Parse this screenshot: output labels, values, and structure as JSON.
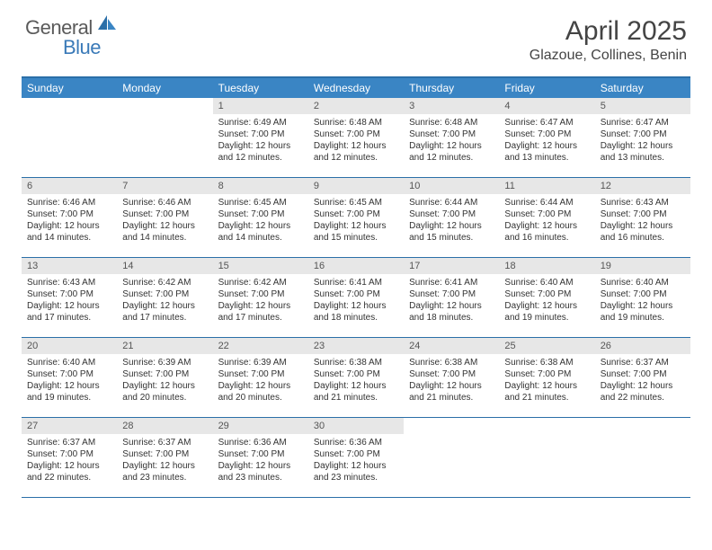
{
  "logo": {
    "general": "General",
    "blue": "Blue"
  },
  "title": "April 2025",
  "location": "Glazoue, Collines, Benin",
  "colors": {
    "header_bg": "#3a85c4",
    "header_border": "#2b6fa8",
    "daynum_bg": "#e7e7e7",
    "logo_gray": "#5a5a5a",
    "logo_blue": "#3a7ab8"
  },
  "dow": [
    "Sunday",
    "Monday",
    "Tuesday",
    "Wednesday",
    "Thursday",
    "Friday",
    "Saturday"
  ],
  "weeks": [
    [
      null,
      null,
      {
        "n": "1",
        "sr": "Sunrise: 6:49 AM",
        "ss": "Sunset: 7:00 PM",
        "dl1": "Daylight: 12 hours",
        "dl2": "and 12 minutes."
      },
      {
        "n": "2",
        "sr": "Sunrise: 6:48 AM",
        "ss": "Sunset: 7:00 PM",
        "dl1": "Daylight: 12 hours",
        "dl2": "and 12 minutes."
      },
      {
        "n": "3",
        "sr": "Sunrise: 6:48 AM",
        "ss": "Sunset: 7:00 PM",
        "dl1": "Daylight: 12 hours",
        "dl2": "and 12 minutes."
      },
      {
        "n": "4",
        "sr": "Sunrise: 6:47 AM",
        "ss": "Sunset: 7:00 PM",
        "dl1": "Daylight: 12 hours",
        "dl2": "and 13 minutes."
      },
      {
        "n": "5",
        "sr": "Sunrise: 6:47 AM",
        "ss": "Sunset: 7:00 PM",
        "dl1": "Daylight: 12 hours",
        "dl2": "and 13 minutes."
      }
    ],
    [
      {
        "n": "6",
        "sr": "Sunrise: 6:46 AM",
        "ss": "Sunset: 7:00 PM",
        "dl1": "Daylight: 12 hours",
        "dl2": "and 14 minutes."
      },
      {
        "n": "7",
        "sr": "Sunrise: 6:46 AM",
        "ss": "Sunset: 7:00 PM",
        "dl1": "Daylight: 12 hours",
        "dl2": "and 14 minutes."
      },
      {
        "n": "8",
        "sr": "Sunrise: 6:45 AM",
        "ss": "Sunset: 7:00 PM",
        "dl1": "Daylight: 12 hours",
        "dl2": "and 14 minutes."
      },
      {
        "n": "9",
        "sr": "Sunrise: 6:45 AM",
        "ss": "Sunset: 7:00 PM",
        "dl1": "Daylight: 12 hours",
        "dl2": "and 15 minutes."
      },
      {
        "n": "10",
        "sr": "Sunrise: 6:44 AM",
        "ss": "Sunset: 7:00 PM",
        "dl1": "Daylight: 12 hours",
        "dl2": "and 15 minutes."
      },
      {
        "n": "11",
        "sr": "Sunrise: 6:44 AM",
        "ss": "Sunset: 7:00 PM",
        "dl1": "Daylight: 12 hours",
        "dl2": "and 16 minutes."
      },
      {
        "n": "12",
        "sr": "Sunrise: 6:43 AM",
        "ss": "Sunset: 7:00 PM",
        "dl1": "Daylight: 12 hours",
        "dl2": "and 16 minutes."
      }
    ],
    [
      {
        "n": "13",
        "sr": "Sunrise: 6:43 AM",
        "ss": "Sunset: 7:00 PM",
        "dl1": "Daylight: 12 hours",
        "dl2": "and 17 minutes."
      },
      {
        "n": "14",
        "sr": "Sunrise: 6:42 AM",
        "ss": "Sunset: 7:00 PM",
        "dl1": "Daylight: 12 hours",
        "dl2": "and 17 minutes."
      },
      {
        "n": "15",
        "sr": "Sunrise: 6:42 AM",
        "ss": "Sunset: 7:00 PM",
        "dl1": "Daylight: 12 hours",
        "dl2": "and 17 minutes."
      },
      {
        "n": "16",
        "sr": "Sunrise: 6:41 AM",
        "ss": "Sunset: 7:00 PM",
        "dl1": "Daylight: 12 hours",
        "dl2": "and 18 minutes."
      },
      {
        "n": "17",
        "sr": "Sunrise: 6:41 AM",
        "ss": "Sunset: 7:00 PM",
        "dl1": "Daylight: 12 hours",
        "dl2": "and 18 minutes."
      },
      {
        "n": "18",
        "sr": "Sunrise: 6:40 AM",
        "ss": "Sunset: 7:00 PM",
        "dl1": "Daylight: 12 hours",
        "dl2": "and 19 minutes."
      },
      {
        "n": "19",
        "sr": "Sunrise: 6:40 AM",
        "ss": "Sunset: 7:00 PM",
        "dl1": "Daylight: 12 hours",
        "dl2": "and 19 minutes."
      }
    ],
    [
      {
        "n": "20",
        "sr": "Sunrise: 6:40 AM",
        "ss": "Sunset: 7:00 PM",
        "dl1": "Daylight: 12 hours",
        "dl2": "and 19 minutes."
      },
      {
        "n": "21",
        "sr": "Sunrise: 6:39 AM",
        "ss": "Sunset: 7:00 PM",
        "dl1": "Daylight: 12 hours",
        "dl2": "and 20 minutes."
      },
      {
        "n": "22",
        "sr": "Sunrise: 6:39 AM",
        "ss": "Sunset: 7:00 PM",
        "dl1": "Daylight: 12 hours",
        "dl2": "and 20 minutes."
      },
      {
        "n": "23",
        "sr": "Sunrise: 6:38 AM",
        "ss": "Sunset: 7:00 PM",
        "dl1": "Daylight: 12 hours",
        "dl2": "and 21 minutes."
      },
      {
        "n": "24",
        "sr": "Sunrise: 6:38 AM",
        "ss": "Sunset: 7:00 PM",
        "dl1": "Daylight: 12 hours",
        "dl2": "and 21 minutes."
      },
      {
        "n": "25",
        "sr": "Sunrise: 6:38 AM",
        "ss": "Sunset: 7:00 PM",
        "dl1": "Daylight: 12 hours",
        "dl2": "and 21 minutes."
      },
      {
        "n": "26",
        "sr": "Sunrise: 6:37 AM",
        "ss": "Sunset: 7:00 PM",
        "dl1": "Daylight: 12 hours",
        "dl2": "and 22 minutes."
      }
    ],
    [
      {
        "n": "27",
        "sr": "Sunrise: 6:37 AM",
        "ss": "Sunset: 7:00 PM",
        "dl1": "Daylight: 12 hours",
        "dl2": "and 22 minutes."
      },
      {
        "n": "28",
        "sr": "Sunrise: 6:37 AM",
        "ss": "Sunset: 7:00 PM",
        "dl1": "Daylight: 12 hours",
        "dl2": "and 23 minutes."
      },
      {
        "n": "29",
        "sr": "Sunrise: 6:36 AM",
        "ss": "Sunset: 7:00 PM",
        "dl1": "Daylight: 12 hours",
        "dl2": "and 23 minutes."
      },
      {
        "n": "30",
        "sr": "Sunrise: 6:36 AM",
        "ss": "Sunset: 7:00 PM",
        "dl1": "Daylight: 12 hours",
        "dl2": "and 23 minutes."
      },
      null,
      null,
      null
    ]
  ]
}
